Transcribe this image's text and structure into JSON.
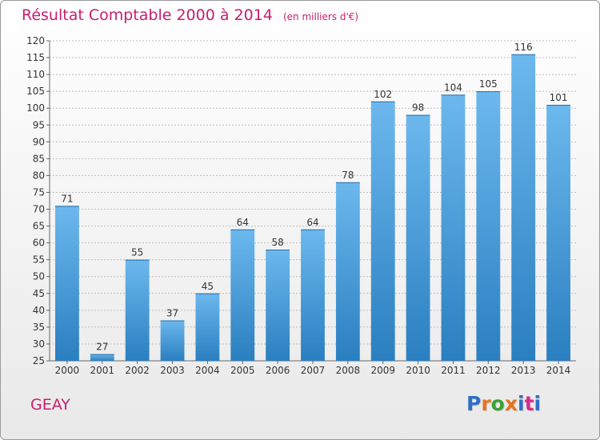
{
  "header": {
    "title": "Résultat Comptable 2000 à 2014",
    "subtitle": "(en milliers d'€)"
  },
  "footer": {
    "commune": "GEAY",
    "logo_text": "Proxiti",
    "logo_colors": [
      "#2f6fc8",
      "#e8731e",
      "#3aa335",
      "#e8731e",
      "#2f6fc8",
      "#d82b8c",
      "#2f6fc8"
    ]
  },
  "colors": {
    "bar_light": "#6cb8ee",
    "bar_dark": "#2a7fc0",
    "accent": "#c81e6e",
    "grid": "#bdbdbd"
  },
  "chart_data": {
    "type": "bar",
    "title": "Résultat Comptable 2000 à 2014",
    "subtitle": "(en milliers d'€)",
    "xlabel": "",
    "ylabel": "",
    "categories": [
      "2000",
      "2001",
      "2002",
      "2003",
      "2004",
      "2005",
      "2006",
      "2007",
      "2008",
      "2009",
      "2010",
      "2011",
      "2012",
      "2013",
      "2014"
    ],
    "values": [
      71,
      27,
      55,
      37,
      45,
      64,
      58,
      64,
      78,
      102,
      98,
      104,
      105,
      116,
      101
    ],
    "ylim": [
      25,
      120
    ],
    "yticks": [
      25,
      30,
      35,
      40,
      45,
      50,
      55,
      60,
      65,
      70,
      75,
      80,
      85,
      90,
      95,
      100,
      105,
      110,
      115,
      120
    ],
    "grid": true,
    "data_labels": true
  }
}
